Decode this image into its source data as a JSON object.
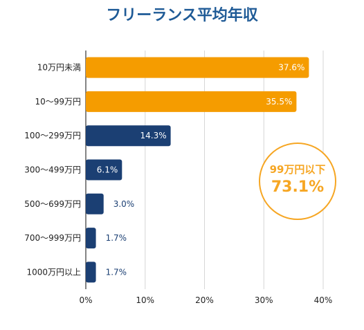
{
  "chart_data": {
    "type": "bar",
    "orientation": "horizontal",
    "title": "フリーランス平均年収",
    "categories": [
      "10万円未満",
      "10～99万円",
      "100～299万円",
      "300～499万円",
      "500～699万円",
      "700～999万円",
      "1000万円以上"
    ],
    "values": [
      37.6,
      35.5,
      14.3,
      6.1,
      3.0,
      1.7,
      1.7
    ],
    "value_labels": [
      "37.6%",
      "35.5%",
      "14.3%",
      "6.1%",
      "3.0%",
      "1.7%",
      "1.7%"
    ],
    "xlim": [
      0,
      40
    ],
    "x_ticks": [
      0,
      10,
      20,
      30,
      40
    ],
    "x_tick_labels": [
      "0%",
      "10%",
      "20%",
      "30%",
      "40%"
    ],
    "grid": true,
    "bar_colors": [
      "#f59c00",
      "#f59c00",
      "#1b3f73",
      "#1b3f73",
      "#1b3f73",
      "#1b3f73",
      "#1b3f73"
    ],
    "annotation": {
      "label": "99万円以下",
      "value": "73.1%"
    }
  },
  "colors": {
    "title": "#1e5a96",
    "accent": "#f6a623",
    "orange": "#f59c00",
    "navy": "#1b3f73",
    "grid": "#d6d6d6"
  }
}
